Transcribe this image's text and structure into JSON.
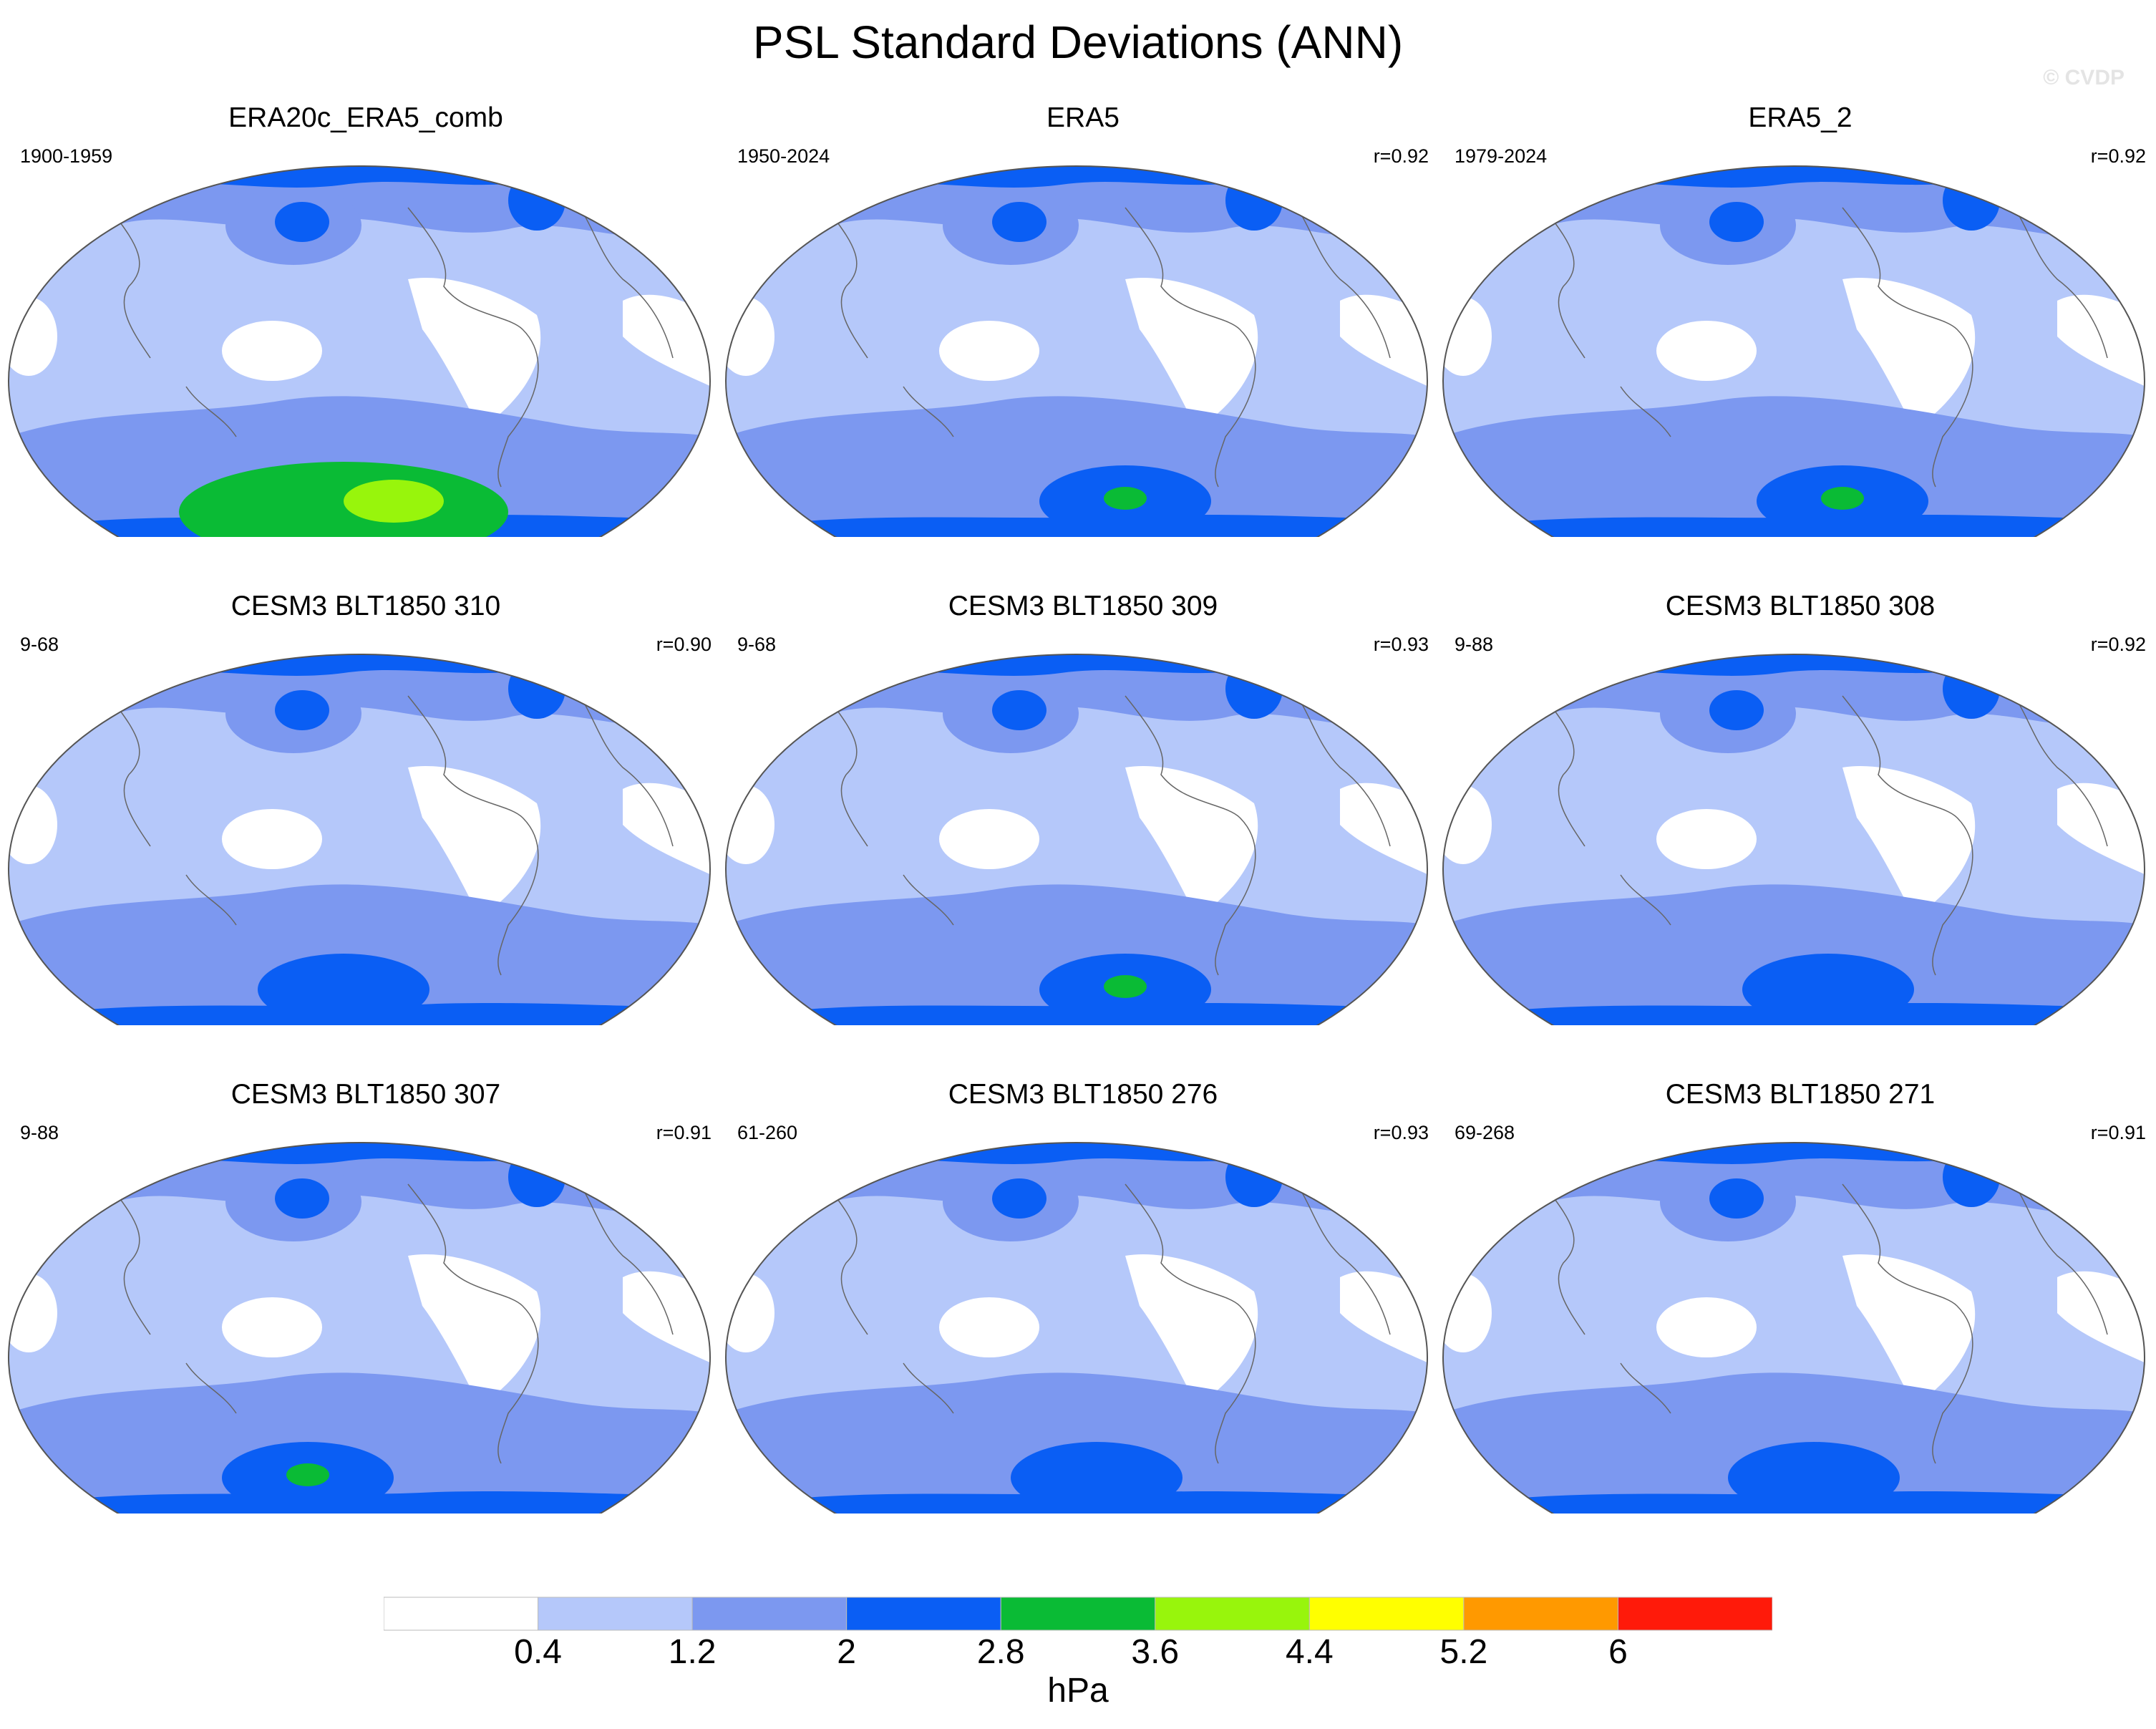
{
  "chart_data": {
    "type": "map-panels",
    "title": "PSL Standard Deviations (ANN)",
    "watermark": "© CVDP",
    "units": "hPa",
    "colorbar": {
      "levels": [
        "0.4",
        "1.2",
        "2",
        "2.8",
        "3.6",
        "4.4",
        "5.2",
        "6"
      ],
      "colors": [
        "#ffffff",
        "#b5c8fa",
        "#7c98f0",
        "#0a5ef4",
        "#0abb35",
        "#98f50c",
        "#ffff00",
        "#ff9900",
        "#ff1a0a"
      ]
    },
    "panels": [
      {
        "name": "ERA20c_ERA5_comb",
        "period": "1900-1959",
        "r": ""
      },
      {
        "name": "ERA5",
        "period": "1950-2024",
        "r": "r=0.92"
      },
      {
        "name": "ERA5_2",
        "period": "1979-2024",
        "r": "r=0.92"
      },
      {
        "name": "CESM3 BLT1850 310",
        "period": "9-68",
        "r": "r=0.90"
      },
      {
        "name": "CESM3 BLT1850 309",
        "period": "9-68",
        "r": "r=0.93"
      },
      {
        "name": "CESM3 BLT1850 308",
        "period": "9-88",
        "r": "r=0.92"
      },
      {
        "name": "CESM3 BLT1850 307",
        "period": "9-88",
        "r": "r=0.91"
      },
      {
        "name": "CESM3 BLT1850 276",
        "period": "61-260",
        "r": "r=0.93"
      },
      {
        "name": "CESM3 BLT1850 271",
        "period": "69-268",
        "r": "r=0.91"
      }
    ]
  }
}
